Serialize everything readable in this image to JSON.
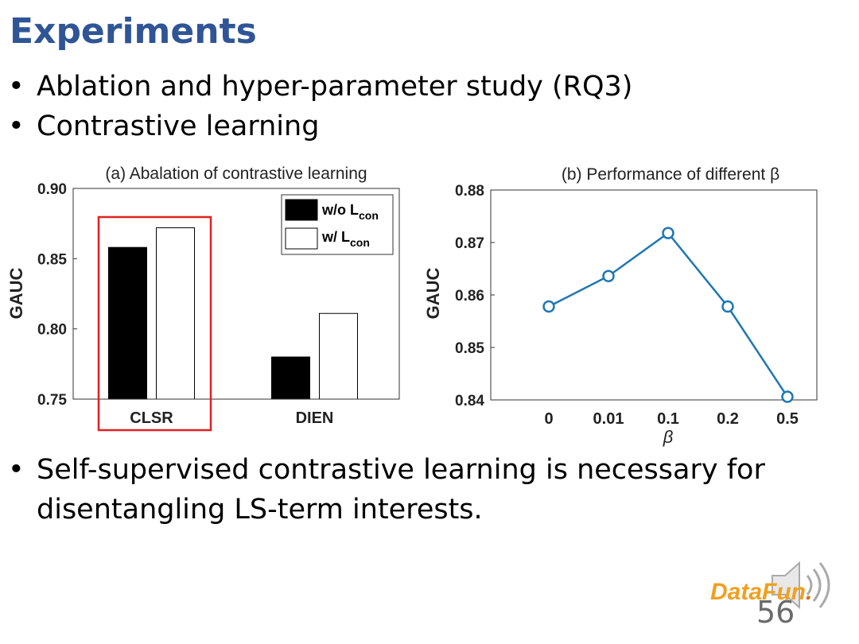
{
  "slide": {
    "title": "Experiments",
    "bullets": [
      "Ablation and hyper-parameter study (RQ3)",
      "Contrastive learning",
      "Self-supervised contrastive learning is necessary for disentangling LS-term interests."
    ],
    "bullet_symbol": "•",
    "page_number": "56",
    "logo_text_a": "DataFun",
    "logo_text_b": ".",
    "colors": {
      "title": "#2f5597",
      "line": "#1f77b4",
      "highlight": "#e02020"
    }
  },
  "chart_data": [
    {
      "type": "bar",
      "title": "(a) Abalation of contrastive learning",
      "ylabel": "GAUC",
      "xlabel": "",
      "categories": [
        "CLSR",
        "DIEN"
      ],
      "series": [
        {
          "name": "w/o L",
          "subscript": "con",
          "values": [
            0.858,
            0.78
          ],
          "fill": "#000000"
        },
        {
          "name": "w/ L",
          "subscript": "con",
          "values": [
            0.872,
            0.811
          ],
          "fill": "#ffffff"
        }
      ],
      "ylim": [
        0.75,
        0.9
      ],
      "yticks": [
        "0.75",
        "0.80",
        "0.85",
        "0.90"
      ],
      "legend": "top-right",
      "highlight": "CLSR"
    },
    {
      "type": "line",
      "title": "(b) Performance of different β",
      "ylabel": "GAUC",
      "xlabel": "β",
      "categories": [
        "0",
        "0.01",
        "0.1",
        "0.2",
        "0.5"
      ],
      "values": [
        0.8578,
        0.8636,
        0.8718,
        0.8578,
        0.8406
      ],
      "ylim": [
        0.84,
        0.88
      ],
      "yticks": [
        "0.84",
        "0.85",
        "0.86",
        "0.87",
        "0.88"
      ],
      "marker": "circle"
    }
  ]
}
